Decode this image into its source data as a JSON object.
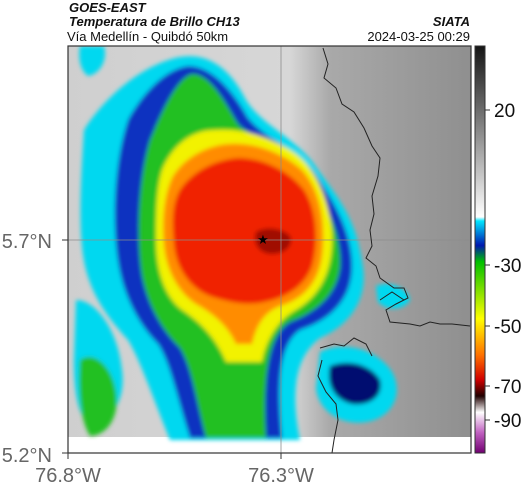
{
  "header": {
    "satellite": "GOES-EAST",
    "product": "Temperatura de Brillo CH13",
    "route": "Vía Medellín - Quibdó 50km",
    "organization": "SIATA",
    "timestamp": "2024-03-25 00:29"
  },
  "axes": {
    "y_ticks": [
      "5.7°N",
      "5.2°N"
    ],
    "x_ticks": [
      "76.8°W",
      "76.3°W"
    ]
  },
  "colorbar": {
    "ticks": [
      "20",
      "-30",
      "-50",
      "-70",
      "-90"
    ],
    "units_hint": "brightness temperature (°C)"
  },
  "markers": {
    "location_symbol": "★"
  },
  "colors": {
    "warm_gray_light": "#d9d9d9",
    "warm_gray_dark": "#8a8a8a",
    "cyan": "#00d8f0",
    "blue": "#1030c0",
    "navy": "#001070",
    "green": "#22c020",
    "yellow": "#f2f200",
    "orange": "#ff8c00",
    "red": "#f02000"
  }
}
